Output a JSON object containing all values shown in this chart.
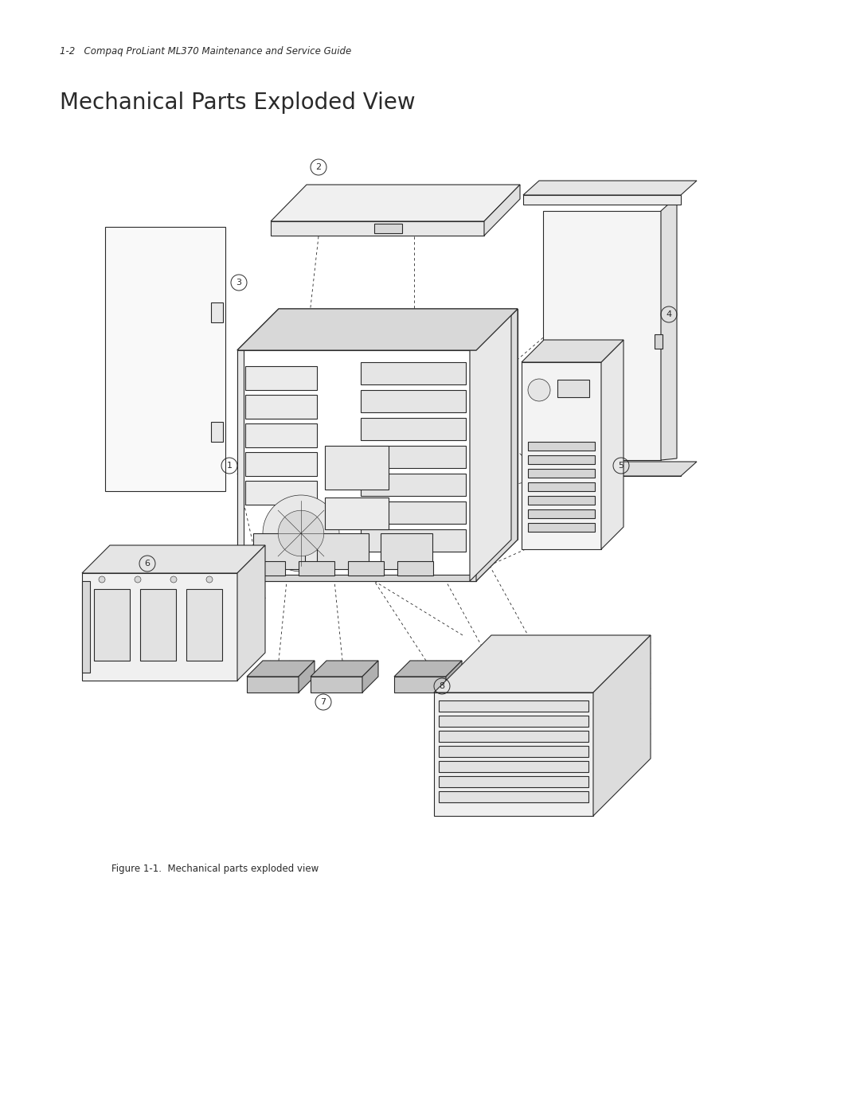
{
  "bg_color": "#ffffff",
  "line_color": "#2a2a2a",
  "header_text": "1-2   Compaq ProLiant ML370 Maintenance and Service Guide",
  "title_text": "Mechanical Parts Exploded View",
  "caption_text": "Figure 1-1.  Mechanical parts exploded view",
  "header_fontsize": 8.5,
  "title_fontsize": 20,
  "caption_fontsize": 8.5,
  "lw": 0.8,
  "lw_thin": 0.5,
  "lw_dash": 0.6
}
